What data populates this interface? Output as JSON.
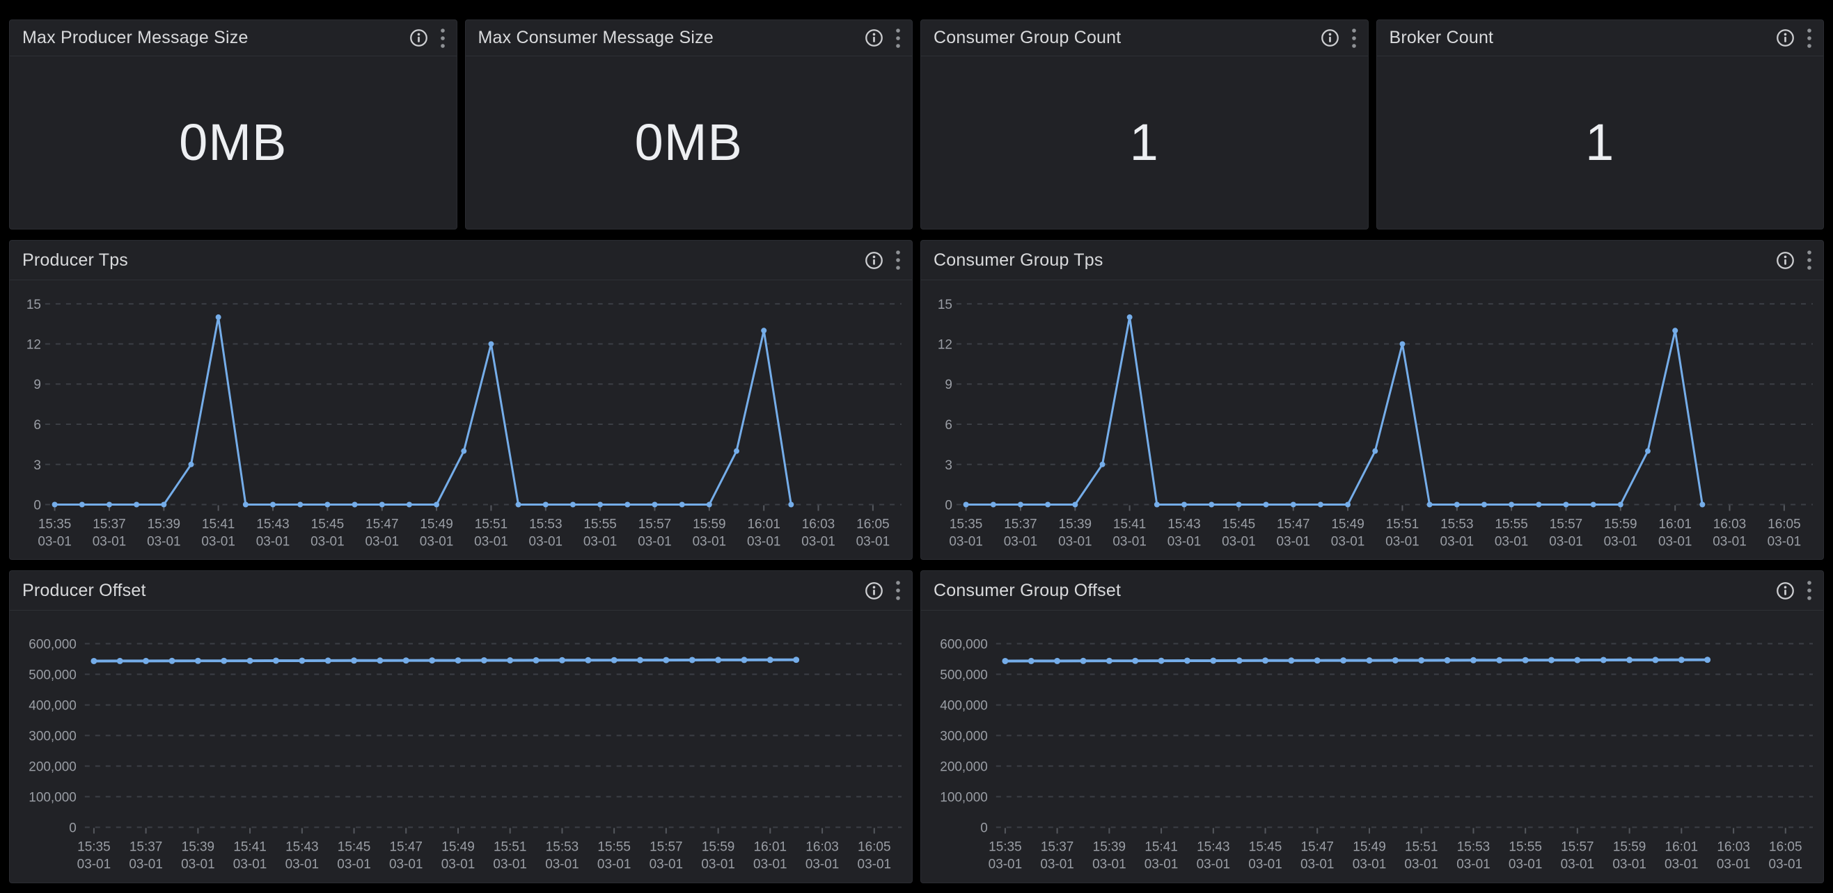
{
  "page": {
    "background": "#000000",
    "panel_background": "#212226",
    "accent_line_color": "#75ADE9",
    "title_color": "#d9dadc",
    "axis_label_color": "#9a9ea5"
  },
  "panels": {
    "stats": [
      {
        "title": "Max Producer Message Size",
        "value": "0MB"
      },
      {
        "title": "Max Consumer Message Size",
        "value": "0MB"
      },
      {
        "title": "Consumer Group Count",
        "value": "1"
      },
      {
        "title": "Broker Count",
        "value": "1"
      }
    ]
  },
  "chart_data": [
    {
      "type": "line",
      "title": "Producer Tps",
      "line_color": "#75ADE9",
      "legend": "none",
      "grid": "dashed-horizontal",
      "ylim": [
        0,
        15.2
      ],
      "x": [
        "15:35",
        "15:36",
        "15:37",
        "15:38",
        "15:39",
        "15:40",
        "15:41",
        "15:42",
        "15:43",
        "15:44",
        "15:45",
        "15:46",
        "15:47",
        "15:48",
        "15:49",
        "15:50",
        "15:51",
        "15:52",
        "15:53",
        "15:54",
        "15:55",
        "15:56",
        "15:57",
        "15:58",
        "15:59",
        "16:00",
        "16:01",
        "16:02"
      ],
      "values": [
        0,
        0,
        0,
        0,
        0,
        3,
        14,
        0,
        0,
        0,
        0,
        0,
        0,
        0,
        0,
        4,
        12,
        0,
        0,
        0,
        0,
        0,
        0,
        0,
        0,
        4,
        13,
        0
      ],
      "y_ticks": [
        {
          "v": 0,
          "label": "0"
        },
        {
          "v": 3,
          "label": "3"
        },
        {
          "v": 6,
          "label": "6"
        },
        {
          "v": 9,
          "label": "9"
        },
        {
          "v": 12,
          "label": "12"
        },
        {
          "v": 15,
          "label": "15"
        }
      ],
      "x_ticks": [
        {
          "time": "15:35",
          "date": "03-01"
        },
        {
          "time": "15:37",
          "date": "03-01"
        },
        {
          "time": "15:39",
          "date": "03-01"
        },
        {
          "time": "15:41",
          "date": "03-01"
        },
        {
          "time": "15:43",
          "date": "03-01"
        },
        {
          "time": "15:45",
          "date": "03-01"
        },
        {
          "time": "15:47",
          "date": "03-01"
        },
        {
          "time": "15:49",
          "date": "03-01"
        },
        {
          "time": "15:51",
          "date": "03-01"
        },
        {
          "time": "15:53",
          "date": "03-01"
        },
        {
          "time": "15:55",
          "date": "03-01"
        },
        {
          "time": "15:57",
          "date": "03-01"
        },
        {
          "time": "15:59",
          "date": "03-01"
        },
        {
          "time": "16:01",
          "date": "03-01"
        },
        {
          "time": "16:03",
          "date": "03-01"
        },
        {
          "time": "16:05",
          "date": "03-01"
        }
      ]
    },
    {
      "type": "line",
      "title": "Consumer Group Tps",
      "line_color": "#75ADE9",
      "legend": "none",
      "grid": "dashed-horizontal",
      "ylim": [
        0,
        15.2
      ],
      "x": [
        "15:35",
        "15:36",
        "15:37",
        "15:38",
        "15:39",
        "15:40",
        "15:41",
        "15:42",
        "15:43",
        "15:44",
        "15:45",
        "15:46",
        "15:47",
        "15:48",
        "15:49",
        "15:50",
        "15:51",
        "15:52",
        "15:53",
        "15:54",
        "15:55",
        "15:56",
        "15:57",
        "15:58",
        "15:59",
        "16:00",
        "16:01",
        "16:02"
      ],
      "values": [
        0,
        0,
        0,
        0,
        0,
        3,
        14,
        0,
        0,
        0,
        0,
        0,
        0,
        0,
        0,
        4,
        12,
        0,
        0,
        0,
        0,
        0,
        0,
        0,
        0,
        4,
        13,
        0
      ],
      "y_ticks": [
        {
          "v": 0,
          "label": "0"
        },
        {
          "v": 3,
          "label": "3"
        },
        {
          "v": 6,
          "label": "6"
        },
        {
          "v": 9,
          "label": "9"
        },
        {
          "v": 12,
          "label": "12"
        },
        {
          "v": 15,
          "label": "15"
        }
      ],
      "x_ticks": [
        {
          "time": "15:35",
          "date": "03-01"
        },
        {
          "time": "15:37",
          "date": "03-01"
        },
        {
          "time": "15:39",
          "date": "03-01"
        },
        {
          "time": "15:41",
          "date": "03-01"
        },
        {
          "time": "15:43",
          "date": "03-01"
        },
        {
          "time": "15:45",
          "date": "03-01"
        },
        {
          "time": "15:47",
          "date": "03-01"
        },
        {
          "time": "15:49",
          "date": "03-01"
        },
        {
          "time": "15:51",
          "date": "03-01"
        },
        {
          "time": "15:53",
          "date": "03-01"
        },
        {
          "time": "15:55",
          "date": "03-01"
        },
        {
          "time": "15:57",
          "date": "03-01"
        },
        {
          "time": "15:59",
          "date": "03-01"
        },
        {
          "time": "16:01",
          "date": "03-01"
        },
        {
          "time": "16:03",
          "date": "03-01"
        },
        {
          "time": "16:05",
          "date": "03-01"
        }
      ]
    },
    {
      "type": "line",
      "title": "Producer Offset",
      "line_color": "#75ADE9",
      "legend": "none",
      "grid": "dashed-horizontal",
      "ylim": [
        0,
        640000
      ],
      "x": [
        "15:35",
        "15:36",
        "15:37",
        "15:38",
        "15:39",
        "15:40",
        "15:41",
        "15:42",
        "15:43",
        "15:44",
        "15:45",
        "15:46",
        "15:47",
        "15:48",
        "15:49",
        "15:50",
        "15:51",
        "15:52",
        "15:53",
        "15:54",
        "15:55",
        "15:56",
        "15:57",
        "15:58",
        "15:59",
        "16:00",
        "16:01",
        "16:02"
      ],
      "values": [
        543300,
        543450,
        543600,
        543750,
        543900,
        544050,
        544200,
        544350,
        544500,
        544650,
        544800,
        544950,
        545100,
        545250,
        545400,
        545550,
        545700,
        545850,
        546000,
        546150,
        546300,
        546450,
        546600,
        546750,
        546900,
        547050,
        547200,
        547350
      ],
      "y_ticks": [
        {
          "v": 0,
          "label": "0"
        },
        {
          "v": 100000,
          "label": "100,000"
        },
        {
          "v": 200000,
          "label": "200,000"
        },
        {
          "v": 300000,
          "label": "300,000"
        },
        {
          "v": 400000,
          "label": "400,000"
        },
        {
          "v": 500000,
          "label": "500,000"
        },
        {
          "v": 600000,
          "label": "600,000"
        }
      ],
      "x_ticks": [
        {
          "time": "15:35",
          "date": "03-01"
        },
        {
          "time": "15:37",
          "date": "03-01"
        },
        {
          "time": "15:39",
          "date": "03-01"
        },
        {
          "time": "15:41",
          "date": "03-01"
        },
        {
          "time": "15:43",
          "date": "03-01"
        },
        {
          "time": "15:45",
          "date": "03-01"
        },
        {
          "time": "15:47",
          "date": "03-01"
        },
        {
          "time": "15:49",
          "date": "03-01"
        },
        {
          "time": "15:51",
          "date": "03-01"
        },
        {
          "time": "15:53",
          "date": "03-01"
        },
        {
          "time": "15:55",
          "date": "03-01"
        },
        {
          "time": "15:57",
          "date": "03-01"
        },
        {
          "time": "15:59",
          "date": "03-01"
        },
        {
          "time": "16:01",
          "date": "03-01"
        },
        {
          "time": "16:03",
          "date": "03-01"
        },
        {
          "time": "16:05",
          "date": "03-01"
        }
      ]
    },
    {
      "type": "line",
      "title": "Consumer Group Offset",
      "line_color": "#75ADE9",
      "legend": "none",
      "grid": "dashed-horizontal",
      "ylim": [
        0,
        640000
      ],
      "x": [
        "15:35",
        "15:36",
        "15:37",
        "15:38",
        "15:39",
        "15:40",
        "15:41",
        "15:42",
        "15:43",
        "15:44",
        "15:45",
        "15:46",
        "15:47",
        "15:48",
        "15:49",
        "15:50",
        "15:51",
        "15:52",
        "15:53",
        "15:54",
        "15:55",
        "15:56",
        "15:57",
        "15:58",
        "15:59",
        "16:00",
        "16:01",
        "16:02"
      ],
      "values": [
        543300,
        543450,
        543600,
        543750,
        543900,
        544050,
        544200,
        544350,
        544500,
        544650,
        544800,
        544950,
        545100,
        545250,
        545400,
        545550,
        545700,
        545850,
        546000,
        546150,
        546300,
        546450,
        546600,
        546750,
        546900,
        547050,
        547200,
        547350
      ],
      "y_ticks": [
        {
          "v": 0,
          "label": "0"
        },
        {
          "v": 100000,
          "label": "100,000"
        },
        {
          "v": 200000,
          "label": "200,000"
        },
        {
          "v": 300000,
          "label": "300,000"
        },
        {
          "v": 400000,
          "label": "400,000"
        },
        {
          "v": 500000,
          "label": "500,000"
        },
        {
          "v": 600000,
          "label": "600,000"
        }
      ],
      "x_ticks": [
        {
          "time": "15:35",
          "date": "03-01"
        },
        {
          "time": "15:37",
          "date": "03-01"
        },
        {
          "time": "15:39",
          "date": "03-01"
        },
        {
          "time": "15:41",
          "date": "03-01"
        },
        {
          "time": "15:43",
          "date": "03-01"
        },
        {
          "time": "15:45",
          "date": "03-01"
        },
        {
          "time": "15:47",
          "date": "03-01"
        },
        {
          "time": "15:49",
          "date": "03-01"
        },
        {
          "time": "15:51",
          "date": "03-01"
        },
        {
          "time": "15:53",
          "date": "03-01"
        },
        {
          "time": "15:55",
          "date": "03-01"
        },
        {
          "time": "15:57",
          "date": "03-01"
        },
        {
          "time": "15:59",
          "date": "03-01"
        },
        {
          "time": "16:01",
          "date": "03-01"
        },
        {
          "time": "16:03",
          "date": "03-01"
        },
        {
          "time": "16:05",
          "date": "03-01"
        }
      ]
    }
  ]
}
